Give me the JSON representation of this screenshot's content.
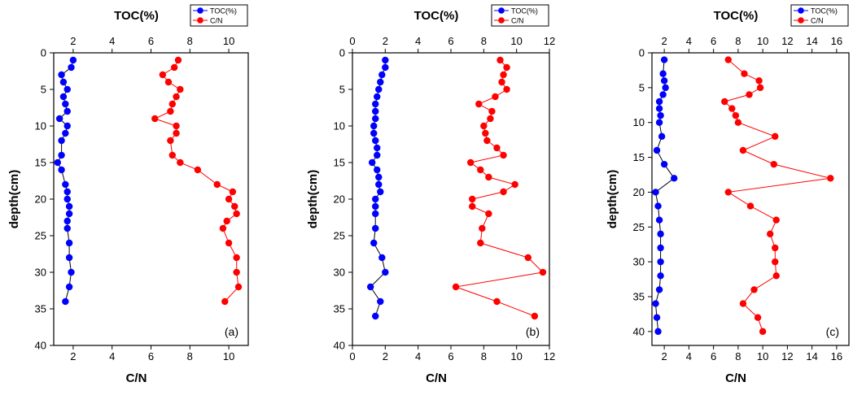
{
  "chart_data": [
    {
      "type": "scatter",
      "top_axis_label": "TOC(%)",
      "bottom_axis_label": "C/N",
      "ylabel": "depth(cm)",
      "panel_label": "(a)",
      "top_range": [
        1,
        11
      ],
      "top_ticks": [
        2,
        4,
        6,
        8,
        10
      ],
      "bottom_range": [
        1,
        11
      ],
      "bottom_ticks": [
        2,
        4,
        6,
        8,
        10
      ],
      "ylim": [
        0,
        40
      ],
      "y_ticks": [
        0,
        5,
        10,
        15,
        20,
        25,
        30,
        35,
        40
      ],
      "legend": {
        "placement": "top-right",
        "entries": [
          "TOC(%)",
          "C/N"
        ]
      },
      "series": [
        {
          "name": "TOC(%)",
          "axis": "top",
          "color": "#0000ff",
          "points": [
            [
              2.0,
              1
            ],
            [
              1.9,
              2
            ],
            [
              1.4,
              3
            ],
            [
              1.5,
              4
            ],
            [
              1.7,
              5
            ],
            [
              1.5,
              6
            ],
            [
              1.6,
              7
            ],
            [
              1.7,
              8
            ],
            [
              1.3,
              9
            ],
            [
              1.7,
              10
            ],
            [
              1.6,
              11
            ],
            [
              1.4,
              12
            ],
            [
              1.4,
              14
            ],
            [
              1.2,
              15
            ],
            [
              1.4,
              16
            ],
            [
              1.6,
              18
            ],
            [
              1.7,
              19
            ],
            [
              1.7,
              20
            ],
            [
              1.8,
              21
            ],
            [
              1.8,
              22
            ],
            [
              1.7,
              23
            ],
            [
              1.7,
              24
            ],
            [
              1.8,
              26
            ],
            [
              1.8,
              28
            ],
            [
              1.9,
              30
            ],
            [
              1.8,
              32
            ],
            [
              1.6,
              34
            ]
          ]
        },
        {
          "name": "C/N",
          "axis": "bottom",
          "color": "#ff0000",
          "points": [
            [
              7.4,
              1
            ],
            [
              7.2,
              2
            ],
            [
              6.6,
              3
            ],
            [
              6.9,
              4
            ],
            [
              7.5,
              5
            ],
            [
              7.3,
              6
            ],
            [
              7.1,
              7
            ],
            [
              7.0,
              8
            ],
            [
              6.2,
              9
            ],
            [
              7.3,
              10
            ],
            [
              7.3,
              11
            ],
            [
              7.0,
              12
            ],
            [
              7.1,
              14
            ],
            [
              7.5,
              15
            ],
            [
              8.4,
              16
            ],
            [
              9.4,
              18
            ],
            [
              10.2,
              19
            ],
            [
              10.0,
              20
            ],
            [
              10.3,
              21
            ],
            [
              10.4,
              22
            ],
            [
              9.9,
              23
            ],
            [
              9.7,
              24
            ],
            [
              10.0,
              26
            ],
            [
              10.4,
              28
            ],
            [
              10.4,
              30
            ],
            [
              10.5,
              32
            ],
            [
              9.8,
              34
            ]
          ]
        }
      ]
    },
    {
      "type": "scatter",
      "top_axis_label": "TOC(%)",
      "bottom_axis_label": "C/N",
      "ylabel": "depth(cm)",
      "panel_label": "(b)",
      "top_range": [
        0,
        12
      ],
      "top_ticks": [
        0,
        2,
        4,
        6,
        8,
        10,
        12
      ],
      "bottom_range": [
        0,
        12
      ],
      "bottom_ticks": [
        0,
        2,
        4,
        6,
        8,
        10,
        12
      ],
      "ylim": [
        0,
        40
      ],
      "y_ticks": [
        0,
        5,
        10,
        15,
        20,
        25,
        30,
        35,
        40
      ],
      "legend": {
        "placement": "top-right",
        "entries": [
          "TOC(%)",
          "C/N"
        ]
      },
      "series": [
        {
          "name": "TOC(%)",
          "axis": "top",
          "color": "#0000ff",
          "points": [
            [
              2.0,
              1
            ],
            [
              2.0,
              2
            ],
            [
              1.8,
              3
            ],
            [
              1.7,
              4
            ],
            [
              1.6,
              5
            ],
            [
              1.5,
              6
            ],
            [
              1.4,
              7
            ],
            [
              1.4,
              8
            ],
            [
              1.4,
              9
            ],
            [
              1.3,
              10
            ],
            [
              1.3,
              11
            ],
            [
              1.4,
              12
            ],
            [
              1.5,
              13
            ],
            [
              1.5,
              14
            ],
            [
              1.2,
              15
            ],
            [
              1.5,
              16
            ],
            [
              1.6,
              17
            ],
            [
              1.6,
              18
            ],
            [
              1.7,
              19
            ],
            [
              1.4,
              20
            ],
            [
              1.4,
              21
            ],
            [
              1.4,
              22
            ],
            [
              1.4,
              24
            ],
            [
              1.3,
              26
            ],
            [
              1.8,
              28
            ],
            [
              2.0,
              30
            ],
            [
              1.1,
              32
            ],
            [
              1.7,
              34
            ],
            [
              1.4,
              36
            ]
          ]
        },
        {
          "name": "C/N",
          "axis": "bottom",
          "color": "#ff0000",
          "points": [
            [
              9.0,
              1
            ],
            [
              9.4,
              2
            ],
            [
              9.2,
              3
            ],
            [
              9.1,
              4
            ],
            [
              9.4,
              5
            ],
            [
              8.7,
              6
            ],
            [
              7.7,
              7
            ],
            [
              8.5,
              8
            ],
            [
              8.4,
              9
            ],
            [
              8.0,
              10
            ],
            [
              8.1,
              11
            ],
            [
              8.2,
              12
            ],
            [
              8.8,
              13
            ],
            [
              9.2,
              14
            ],
            [
              7.2,
              15
            ],
            [
              7.8,
              16
            ],
            [
              8.3,
              17
            ],
            [
              9.9,
              18
            ],
            [
              9.2,
              19
            ],
            [
              7.3,
              20
            ],
            [
              7.3,
              21
            ],
            [
              8.3,
              22
            ],
            [
              7.9,
              24
            ],
            [
              7.8,
              26
            ],
            [
              10.7,
              28
            ],
            [
              11.6,
              30
            ],
            [
              6.3,
              32
            ],
            [
              8.8,
              34
            ],
            [
              11.1,
              36
            ]
          ]
        }
      ]
    },
    {
      "type": "scatter",
      "top_axis_label": "TOC(%)",
      "bottom_axis_label": "C/N",
      "ylabel": "depth(cm)",
      "panel_label": "(c)",
      "top_range": [
        1,
        17
      ],
      "top_ticks": [
        2,
        4,
        6,
        8,
        10,
        12,
        14,
        16
      ],
      "bottom_range": [
        1,
        17
      ],
      "bottom_ticks": [
        2,
        4,
        6,
        8,
        10,
        12,
        14,
        16
      ],
      "ylim": [
        0,
        42
      ],
      "y_ticks": [
        0,
        5,
        10,
        15,
        20,
        25,
        30,
        35,
        40
      ],
      "legend": {
        "placement": "top-right",
        "entries": [
          "TOC(%)",
          "C/N"
        ]
      },
      "series": [
        {
          "name": "TOC(%)",
          "axis": "top",
          "color": "#0000ff",
          "points": [
            [
              2.0,
              1
            ],
            [
              1.9,
              3
            ],
            [
              2.0,
              4
            ],
            [
              2.1,
              5
            ],
            [
              1.9,
              6
            ],
            [
              1.6,
              7
            ],
            [
              1.6,
              8
            ],
            [
              1.7,
              9
            ],
            [
              1.6,
              10
            ],
            [
              1.8,
              12
            ],
            [
              1.4,
              14
            ],
            [
              2.0,
              16
            ],
            [
              2.8,
              18
            ],
            [
              1.3,
              20
            ],
            [
              1.5,
              22
            ],
            [
              1.6,
              24
            ],
            [
              1.7,
              26
            ],
            [
              1.7,
              28
            ],
            [
              1.7,
              30
            ],
            [
              1.7,
              32
            ],
            [
              1.6,
              34
            ],
            [
              1.3,
              36
            ],
            [
              1.4,
              38
            ],
            [
              1.5,
              40
            ]
          ]
        },
        {
          "name": "C/N",
          "axis": "bottom",
          "color": "#ff0000",
          "points": [
            [
              7.2,
              1
            ],
            [
              8.5,
              3
            ],
            [
              9.7,
              4
            ],
            [
              9.8,
              5
            ],
            [
              8.9,
              6
            ],
            [
              6.9,
              7
            ],
            [
              7.5,
              8
            ],
            [
              7.8,
              9
            ],
            [
              8.0,
              10
            ],
            [
              11.0,
              12
            ],
            [
              8.4,
              14
            ],
            [
              10.9,
              16
            ],
            [
              15.5,
              18
            ],
            [
              7.2,
              20
            ],
            [
              9.0,
              22
            ],
            [
              11.1,
              24
            ],
            [
              10.6,
              26
            ],
            [
              11.0,
              28
            ],
            [
              11.0,
              30
            ],
            [
              11.1,
              32
            ],
            [
              9.3,
              34
            ],
            [
              8.4,
              36
            ],
            [
              9.6,
              38
            ],
            [
              10.0,
              40
            ]
          ]
        }
      ]
    }
  ]
}
